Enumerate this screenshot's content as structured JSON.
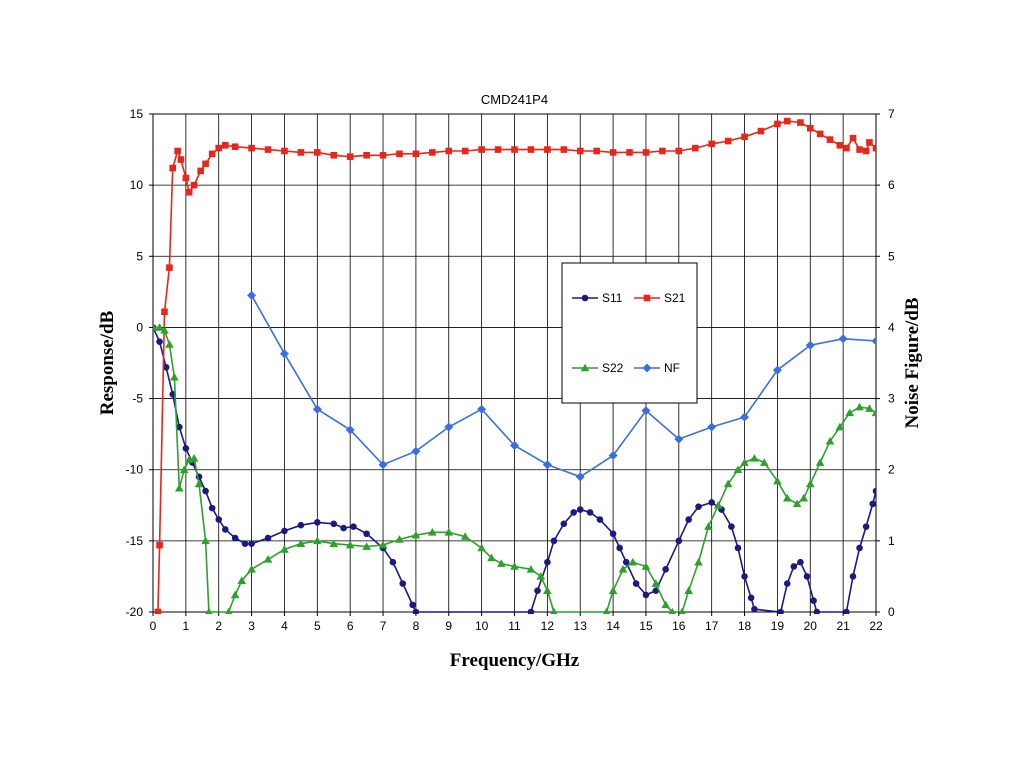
{
  "chart_data": {
    "type": "line",
    "title": "CMD241P4",
    "xlabel": "Frequency/GHz",
    "ylabel": "Response/dB",
    "y2label": "Noise Figure/dB",
    "xlim": [
      0,
      22
    ],
    "ylim": [
      -20,
      15
    ],
    "y2lim": [
      0,
      7
    ],
    "x_ticks": [
      0,
      1,
      2,
      3,
      4,
      5,
      6,
      7,
      8,
      9,
      10,
      11,
      12,
      13,
      14,
      15,
      16,
      17,
      18,
      19,
      20,
      21,
      22
    ],
    "y_ticks": [
      15,
      10,
      5,
      0,
      -5,
      -10,
      -15,
      -20
    ],
    "y2_ticks": [
      7,
      6,
      5,
      4,
      3,
      2,
      1,
      0
    ],
    "grid": true,
    "legend_position": "center-right",
    "series": [
      {
        "name": "S11",
        "axis": "left",
        "color": "#1a1a80",
        "marker": "circle",
        "points": [
          [
            0,
            0
          ],
          [
            0.2,
            -1
          ],
          [
            0.4,
            -2.8
          ],
          [
            0.6,
            -4.7
          ],
          [
            0.8,
            -7
          ],
          [
            1,
            -8.5
          ],
          [
            1.2,
            -9.5
          ],
          [
            1.4,
            -10.5
          ],
          [
            1.6,
            -11.5
          ],
          [
            1.8,
            -12.7
          ],
          [
            2,
            -13.5
          ],
          [
            2.2,
            -14.2
          ],
          [
            2.5,
            -14.8
          ],
          [
            2.8,
            -15.2
          ],
          [
            3,
            -15.2
          ],
          [
            3.5,
            -14.8
          ],
          [
            4,
            -14.3
          ],
          [
            4.5,
            -13.9
          ],
          [
            5,
            -13.7
          ],
          [
            5.5,
            -13.8
          ],
          [
            5.8,
            -14.1
          ],
          [
            6.1,
            -14
          ],
          [
            6.5,
            -14.5
          ],
          [
            7,
            -15.5
          ],
          [
            7.3,
            -16.5
          ],
          [
            7.6,
            -18
          ],
          [
            7.9,
            -19.5
          ],
          [
            8,
            -20
          ],
          [
            11.5,
            -20
          ],
          [
            11.7,
            -18.5
          ],
          [
            12,
            -16.5
          ],
          [
            12.2,
            -15
          ],
          [
            12.5,
            -13.8
          ],
          [
            12.8,
            -13
          ],
          [
            13,
            -12.8
          ],
          [
            13.3,
            -13
          ],
          [
            13.6,
            -13.5
          ],
          [
            14,
            -14.5
          ],
          [
            14.2,
            -15.5
          ],
          [
            14.4,
            -16.5
          ],
          [
            14.7,
            -18
          ],
          [
            15,
            -18.8
          ],
          [
            15.3,
            -18.5
          ],
          [
            15.6,
            -17
          ],
          [
            16,
            -15
          ],
          [
            16.3,
            -13.5
          ],
          [
            16.6,
            -12.6
          ],
          [
            17,
            -12.3
          ],
          [
            17.3,
            -12.8
          ],
          [
            17.6,
            -14
          ],
          [
            17.8,
            -15.5
          ],
          [
            18,
            -17.5
          ],
          [
            18.2,
            -19
          ],
          [
            18.3,
            -19.8
          ],
          [
            19.1,
            -20
          ],
          [
            19.3,
            -18
          ],
          [
            19.5,
            -16.8
          ],
          [
            19.7,
            -16.5
          ],
          [
            19.9,
            -17.5
          ],
          [
            20.1,
            -19.2
          ],
          [
            20.2,
            -20
          ],
          [
            21.1,
            -20
          ],
          [
            21.3,
            -17.5
          ],
          [
            21.5,
            -15.5
          ],
          [
            21.7,
            -14
          ],
          [
            21.9,
            -12.4
          ],
          [
            22,
            -11.5
          ]
        ]
      },
      {
        "name": "S21",
        "axis": "left",
        "color": "#e8261a",
        "marker": "square",
        "points": [
          [
            0.15,
            -20
          ],
          [
            0.2,
            -15.3
          ],
          [
            0.35,
            1.1
          ],
          [
            0.5,
            4.2
          ],
          [
            0.6,
            11.2
          ],
          [
            0.75,
            12.4
          ],
          [
            0.85,
            11.8
          ],
          [
            1,
            10.5
          ],
          [
            1.1,
            9.5
          ],
          [
            1.25,
            10
          ],
          [
            1.45,
            11
          ],
          [
            1.6,
            11.5
          ],
          [
            1.8,
            12.2
          ],
          [
            2,
            12.6
          ],
          [
            2.2,
            12.8
          ],
          [
            2.5,
            12.7
          ],
          [
            3,
            12.6
          ],
          [
            3.5,
            12.5
          ],
          [
            4,
            12.4
          ],
          [
            4.5,
            12.3
          ],
          [
            5,
            12.3
          ],
          [
            5.5,
            12.1
          ],
          [
            6,
            12
          ],
          [
            6.5,
            12.1
          ],
          [
            7,
            12.1
          ],
          [
            7.5,
            12.2
          ],
          [
            8,
            12.2
          ],
          [
            8.5,
            12.3
          ],
          [
            9,
            12.4
          ],
          [
            9.5,
            12.4
          ],
          [
            10,
            12.5
          ],
          [
            10.5,
            12.5
          ],
          [
            11,
            12.5
          ],
          [
            11.5,
            12.5
          ],
          [
            12,
            12.5
          ],
          [
            12.5,
            12.5
          ],
          [
            13,
            12.4
          ],
          [
            13.5,
            12.4
          ],
          [
            14,
            12.3
          ],
          [
            14.5,
            12.3
          ],
          [
            15,
            12.3
          ],
          [
            15.5,
            12.4
          ],
          [
            16,
            12.4
          ],
          [
            16.5,
            12.6
          ],
          [
            17,
            12.9
          ],
          [
            17.5,
            13.1
          ],
          [
            18,
            13.4
          ],
          [
            18.5,
            13.8
          ],
          [
            19,
            14.3
          ],
          [
            19.3,
            14.5
          ],
          [
            19.7,
            14.4
          ],
          [
            20,
            14
          ],
          [
            20.3,
            13.6
          ],
          [
            20.6,
            13.2
          ],
          [
            20.9,
            12.8
          ],
          [
            21.1,
            12.6
          ],
          [
            21.3,
            13.3
          ],
          [
            21.5,
            12.5
          ],
          [
            21.7,
            12.4
          ],
          [
            21.8,
            13
          ],
          [
            22,
            12.6
          ]
        ]
      },
      {
        "name": "S22",
        "axis": "left",
        "color": "#2ea02c",
        "marker": "triangle",
        "points": [
          [
            0,
            0
          ],
          [
            0.2,
            0
          ],
          [
            0.35,
            -0.2
          ],
          [
            0.5,
            -1.2
          ],
          [
            0.65,
            -3.5
          ],
          [
            0.8,
            -11.3
          ],
          [
            0.95,
            -10
          ],
          [
            1.1,
            -9.3
          ],
          [
            1.25,
            -9.2
          ],
          [
            1.4,
            -11
          ],
          [
            1.6,
            -15
          ],
          [
            1.7,
            -20
          ],
          [
            2.3,
            -20
          ],
          [
            2.5,
            -18.8
          ],
          [
            2.7,
            -17.8
          ],
          [
            3,
            -17
          ],
          [
            3.5,
            -16.3
          ],
          [
            4,
            -15.6
          ],
          [
            4.5,
            -15.2
          ],
          [
            5,
            -15
          ],
          [
            5.5,
            -15.2
          ],
          [
            6,
            -15.3
          ],
          [
            6.5,
            -15.4
          ],
          [
            7,
            -15.3
          ],
          [
            7.5,
            -14.9
          ],
          [
            8,
            -14.6
          ],
          [
            8.5,
            -14.4
          ],
          [
            9,
            -14.4
          ],
          [
            9.5,
            -14.7
          ],
          [
            10,
            -15.5
          ],
          [
            10.3,
            -16.2
          ],
          [
            10.6,
            -16.6
          ],
          [
            11,
            -16.8
          ],
          [
            11.5,
            -17
          ],
          [
            11.8,
            -17.5
          ],
          [
            12,
            -18.5
          ],
          [
            12.2,
            -20
          ],
          [
            13.8,
            -20
          ],
          [
            14,
            -18.5
          ],
          [
            14.3,
            -17
          ],
          [
            14.6,
            -16.5
          ],
          [
            15,
            -16.8
          ],
          [
            15.3,
            -18
          ],
          [
            15.6,
            -19.5
          ],
          [
            15.8,
            -20
          ],
          [
            16.1,
            -20
          ],
          [
            16.3,
            -18.5
          ],
          [
            16.6,
            -16.5
          ],
          [
            16.9,
            -14
          ],
          [
            17.2,
            -12.5
          ],
          [
            17.5,
            -11
          ],
          [
            17.8,
            -10
          ],
          [
            18,
            -9.5
          ],
          [
            18.3,
            -9.2
          ],
          [
            18.6,
            -9.5
          ],
          [
            19,
            -10.8
          ],
          [
            19.3,
            -12
          ],
          [
            19.6,
            -12.4
          ],
          [
            19.8,
            -12
          ],
          [
            20,
            -11
          ],
          [
            20.3,
            -9.5
          ],
          [
            20.6,
            -8
          ],
          [
            20.9,
            -7
          ],
          [
            21.2,
            -6
          ],
          [
            21.5,
            -5.6
          ],
          [
            21.8,
            -5.7
          ],
          [
            22,
            -6
          ]
        ]
      },
      {
        "name": "NF",
        "axis": "right",
        "color": "#3a6fe0",
        "marker": "diamond",
        "points": [
          [
            3,
            4.45
          ],
          [
            4,
            3.63
          ],
          [
            5,
            2.85
          ],
          [
            6,
            2.56
          ],
          [
            7,
            2.07
          ],
          [
            8,
            2.26
          ],
          [
            9,
            2.6
          ],
          [
            10,
            2.85
          ],
          [
            11,
            2.34
          ],
          [
            12,
            2.07
          ],
          [
            13,
            1.9
          ],
          [
            14,
            2.2
          ],
          [
            15,
            2.83
          ],
          [
            16,
            2.43
          ],
          [
            17,
            2.6
          ],
          [
            18,
            2.74
          ],
          [
            19,
            3.4
          ],
          [
            20,
            3.75
          ],
          [
            21,
            3.84
          ],
          [
            22,
            3.81
          ]
        ]
      }
    ]
  }
}
